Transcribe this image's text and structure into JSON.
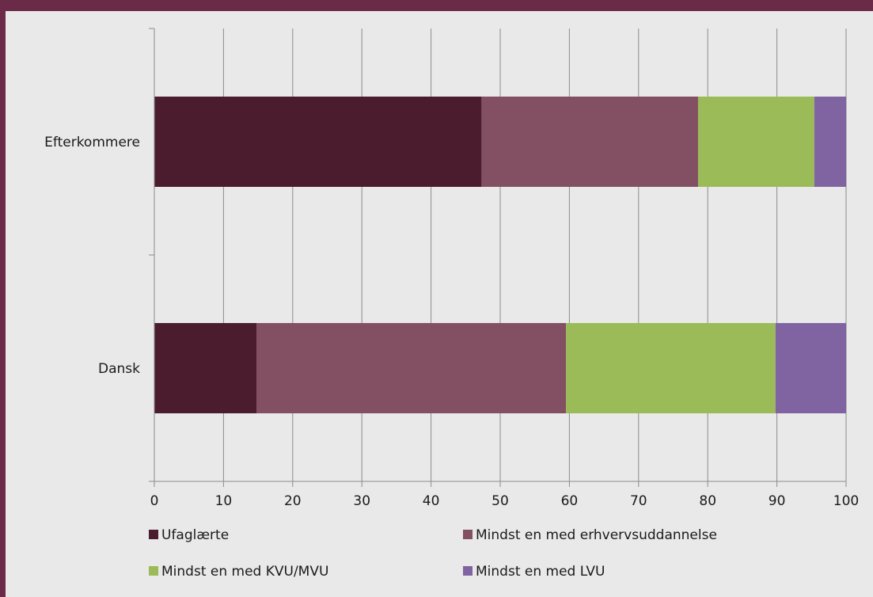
{
  "chart_data": {
    "type": "bar",
    "orientation": "horizontal",
    "stacked": true,
    "categories": [
      "Efterkommere",
      "Dansk"
    ],
    "series": [
      {
        "name": "Ufaglærte",
        "color": "#4a1c2e",
        "values": [
          47.3,
          14.8
        ]
      },
      {
        "name": "Mindst en med erhvervsuddannelse",
        "color": "#834f62",
        "values": [
          31.3,
          44.7
        ]
      },
      {
        "name": "Mindst en med KVU/MVU",
        "color": "#9bbb59",
        "values": [
          16.8,
          30.3
        ]
      },
      {
        "name": "Mindst en med LVU",
        "color": "#8064a2",
        "values": [
          4.6,
          10.2
        ]
      }
    ],
    "xlim": [
      0,
      100
    ],
    "xticks": [
      "0",
      "10",
      "20",
      "30",
      "40",
      "50",
      "60",
      "70",
      "80",
      "90",
      "100"
    ],
    "grid": true,
    "legend_position": "bottom"
  }
}
